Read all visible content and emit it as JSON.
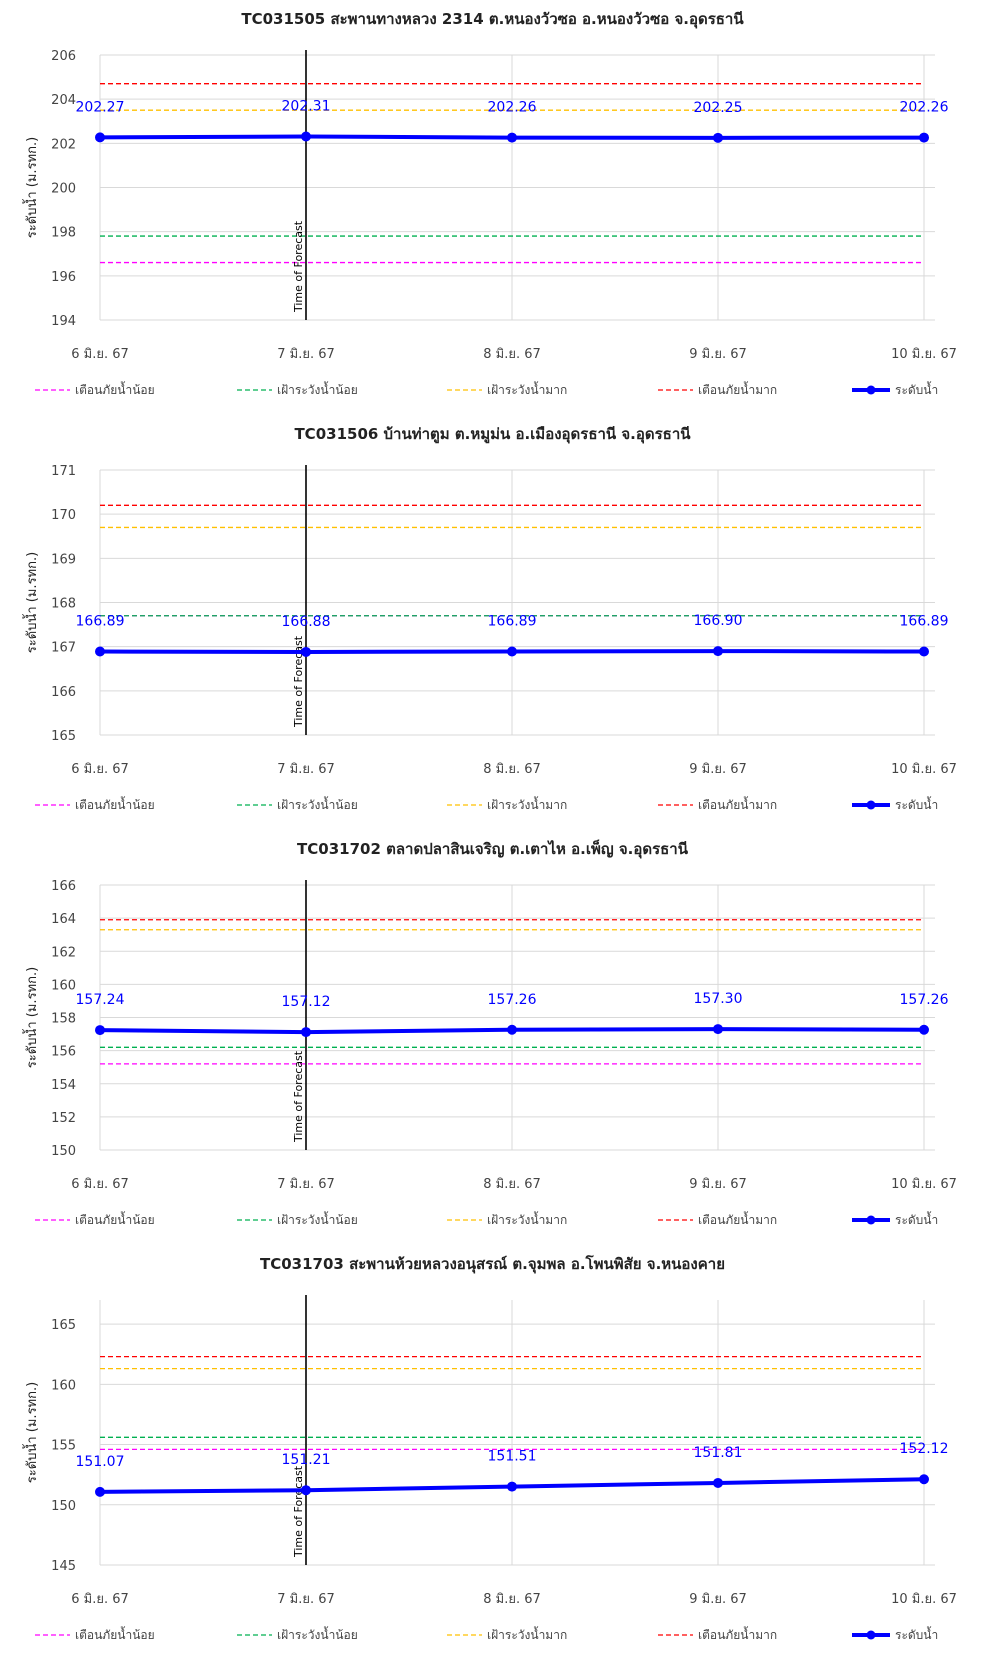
{
  "legend_items": [
    {
      "label": "เตือนภัยน้ำน้อย",
      "color": "#ff00ff",
      "style": "dashed"
    },
    {
      "label": "เฝ้าระวังน้ำน้อย",
      "color": "#00b050",
      "style": "dashed"
    },
    {
      "label": "เฝ้าระวังน้ำมาก",
      "color": "#ffc000",
      "style": "dashed"
    },
    {
      "label": "เตือนภัยน้ำมาก",
      "color": "#ff0000",
      "style": "dashed"
    },
    {
      "label": "ระดับน้ำ",
      "color": "#0000ff",
      "style": "solid-marker"
    }
  ],
  "chart_data": [
    {
      "type": "line",
      "title": "TC031505 สะพานทางหลวง 2314 ต.หนองวัวซอ อ.หนองวัวซอ จ.อุดรธานี",
      "ylabel": "ระดับน้ำ (ม.รทก.)",
      "categories": [
        "6 มิ.ย. 67",
        "7 มิ.ย. 67",
        "8 มิ.ย. 67",
        "9 มิ.ย. 67",
        "10 มิ.ย. 67"
      ],
      "ylim": [
        194,
        206
      ],
      "yticks": [
        194,
        196,
        198,
        200,
        202,
        204,
        206
      ],
      "forecast_label": "Time of Forecast",
      "forecast_index": 1,
      "series": [
        {
          "name": "เตือนภัยน้ำน้อย",
          "values": [
            196.6,
            196.6,
            196.6,
            196.6,
            196.6
          ]
        },
        {
          "name": "เฝ้าระวังน้ำน้อย",
          "values": [
            197.8,
            197.8,
            197.8,
            197.8,
            197.8
          ]
        },
        {
          "name": "เฝ้าระวังน้ำมาก",
          "values": [
            203.5,
            203.5,
            203.5,
            203.5,
            203.5
          ]
        },
        {
          "name": "เตือนภัยน้ำมาก",
          "values": [
            204.7,
            204.7,
            204.7,
            204.7,
            204.7
          ]
        },
        {
          "name": "ระดับน้ำ",
          "values": [
            202.27,
            202.31,
            202.26,
            202.25,
            202.26
          ]
        }
      ],
      "data_labels": [
        "202.27",
        "202.31",
        "202.26",
        "202.25",
        "202.26"
      ]
    },
    {
      "type": "line",
      "title": "TC031506 บ้านท่าตูม ต.หมูม่น อ.เมืองอุดรธานี จ.อุดรธานี",
      "ylabel": "ระดับน้ำ (ม.รทก.)",
      "categories": [
        "6 มิ.ย. 67",
        "7 มิ.ย. 67",
        "8 มิ.ย. 67",
        "9 มิ.ย. 67",
        "10 มิ.ย. 67"
      ],
      "ylim": [
        165,
        171
      ],
      "yticks": [
        165,
        166,
        167,
        168,
        169,
        170,
        171
      ],
      "forecast_label": "Time of Forecast",
      "forecast_index": 1,
      "series": [
        {
          "name": "เตือนภัยน้ำน้อย",
          "values": [
            167.7,
            167.7,
            167.7,
            167.7,
            167.7
          ]
        },
        {
          "name": "เฝ้าระวังน้ำน้อย",
          "values": [
            167.7,
            167.7,
            167.7,
            167.7,
            167.7
          ]
        },
        {
          "name": "เฝ้าระวังน้ำมาก",
          "values": [
            169.7,
            169.7,
            169.7,
            169.7,
            169.7
          ]
        },
        {
          "name": "เตือนภัยน้ำมาก",
          "values": [
            170.2,
            170.2,
            170.2,
            170.2,
            170.2
          ]
        },
        {
          "name": "ระดับน้ำ",
          "values": [
            166.89,
            166.88,
            166.89,
            166.9,
            166.89
          ]
        }
      ],
      "data_labels": [
        "166.89",
        "166.88",
        "166.89",
        "166.90",
        "166.89"
      ]
    },
    {
      "type": "line",
      "title": "TC031702 ตลาดปลาสินเจริญ ต.เตาไห อ.เพ็ญ จ.อุดรธานี",
      "ylabel": "ระดับน้ำ (ม.รทก.)",
      "categories": [
        "6 มิ.ย. 67",
        "7 มิ.ย. 67",
        "8 มิ.ย. 67",
        "9 มิ.ย. 67",
        "10 มิ.ย. 67"
      ],
      "ylim": [
        150,
        166
      ],
      "yticks": [
        150,
        152,
        154,
        156,
        158,
        160,
        162,
        164,
        166
      ],
      "forecast_label": "Time of Forecast",
      "forecast_index": 1,
      "series": [
        {
          "name": "เตือนภัยน้ำน้อย",
          "values": [
            155.2,
            155.2,
            155.2,
            155.2,
            155.2
          ]
        },
        {
          "name": "เฝ้าระวังน้ำน้อย",
          "values": [
            156.2,
            156.2,
            156.2,
            156.2,
            156.2
          ]
        },
        {
          "name": "เฝ้าระวังน้ำมาก",
          "values": [
            163.3,
            163.3,
            163.3,
            163.3,
            163.3
          ]
        },
        {
          "name": "เตือนภัยน้ำมาก",
          "values": [
            163.9,
            163.9,
            163.9,
            163.9,
            163.9
          ]
        },
        {
          "name": "ระดับน้ำ",
          "values": [
            157.24,
            157.12,
            157.26,
            157.3,
            157.26
          ]
        }
      ],
      "data_labels": [
        "157.24",
        "157.12",
        "157.26",
        "157.30",
        "157.26"
      ]
    },
    {
      "type": "line",
      "title": "TC031703 สะพานห้วยหลวงอนุสรณ์ ต.จุมพล อ.โพนพิสัย จ.หนองคาย",
      "ylabel": "ระดับน้ำ (ม.รทก.)",
      "categories": [
        "6 มิ.ย. 67",
        "7 มิ.ย. 67",
        "8 มิ.ย. 67",
        "9 มิ.ย. 67",
        "10 มิ.ย. 67"
      ],
      "ylim": [
        145,
        167
      ],
      "yticks": [
        145,
        150,
        155,
        160,
        165
      ],
      "forecast_label": "Time of Forecast",
      "forecast_index": 1,
      "series": [
        {
          "name": "เตือนภัยน้ำน้อย",
          "values": [
            154.6,
            154.6,
            154.6,
            154.6,
            154.6
          ]
        },
        {
          "name": "เฝ้าระวังน้ำน้อย",
          "values": [
            155.6,
            155.6,
            155.6,
            155.6,
            155.6
          ]
        },
        {
          "name": "เฝ้าระวังน้ำมาก",
          "values": [
            161.3,
            161.3,
            161.3,
            161.3,
            161.3
          ]
        },
        {
          "name": "เตือนภัยน้ำมาก",
          "values": [
            162.3,
            162.3,
            162.3,
            162.3,
            162.3
          ]
        },
        {
          "name": "ระดับน้ำ",
          "values": [
            151.07,
            151.21,
            151.51,
            151.81,
            152.12
          ]
        }
      ],
      "data_labels": [
        "151.07",
        "151.21",
        "151.51",
        "151.81",
        "152.12"
      ]
    }
  ]
}
